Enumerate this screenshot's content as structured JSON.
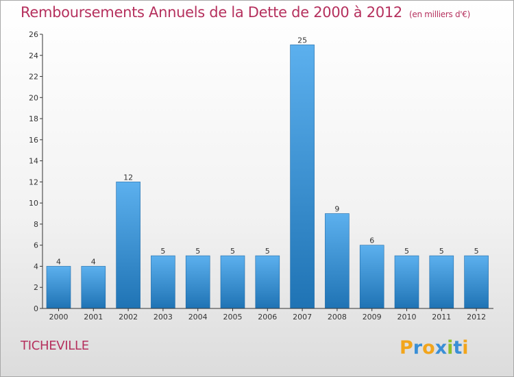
{
  "header": {
    "title": "Remboursements Annuels de la Dette de 2000 à 2012",
    "unit": "(en milliers d'€)"
  },
  "footer": {
    "city": "TICHEVILLE",
    "brand": "Proxiti"
  },
  "colors": {
    "title": "#b5305d",
    "bar_light": "#5aacea",
    "bar_dark": "#2276b6",
    "axis": "#333333"
  },
  "chart_data": {
    "type": "bar",
    "title": "Remboursements Annuels de la Dette de 2000 à 2012",
    "xlabel": "",
    "ylabel": "",
    "categories": [
      "2000",
      "2001",
      "2002",
      "2003",
      "2004",
      "2005",
      "2006",
      "2007",
      "2008",
      "2009",
      "2010",
      "2011",
      "2012"
    ],
    "values": [
      4,
      4,
      12,
      5,
      5,
      5,
      5,
      25,
      9,
      6,
      5,
      5,
      5
    ],
    "ylim": [
      0,
      26
    ],
    "yticks": [
      0,
      2,
      4,
      6,
      8,
      10,
      12,
      14,
      16,
      18,
      20,
      22,
      24,
      26
    ],
    "grid": false,
    "data_labels": true
  }
}
